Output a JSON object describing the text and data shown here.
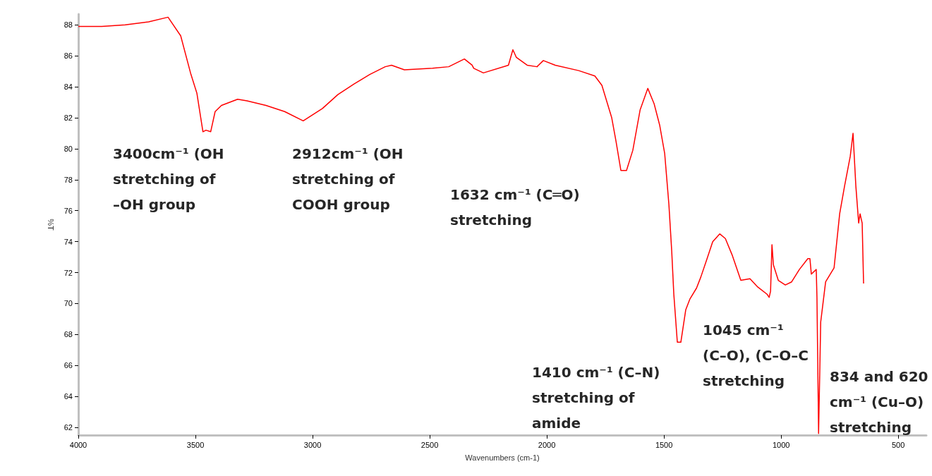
{
  "chart_data": {
    "type": "line",
    "xlabel": "Wavenumbers (cm-1)",
    "ylabel": "%T",
    "xlim": [
      4000,
      380
    ],
    "xticks": [
      4000,
      3500,
      3000,
      2500,
      2000,
      1500,
      1000,
      500
    ],
    "ylim": [
      61.5,
      88.7
    ],
    "yticks": [
      62,
      64,
      66,
      68,
      70,
      72,
      74,
      76,
      78,
      80,
      82,
      84,
      86,
      88
    ],
    "marker": "none",
    "line_style": "solid",
    "series": [
      {
        "color": "#ff0000",
        "x": [
          4000,
          3900,
          3800,
          3700,
          3617,
          3563,
          3521,
          3494,
          3468,
          3455,
          3435,
          3416,
          3389,
          3320,
          3280,
          3199,
          3119,
          3040,
          2958,
          2892,
          2822,
          2756,
          2690,
          2663,
          2608,
          2488,
          2419,
          2352,
          2319,
          2312,
          2271,
          2164,
          2145,
          2130,
          2084,
          2042,
          2015,
          1964,
          1864,
          1795,
          1765,
          1723,
          1705,
          1684,
          1660,
          1633,
          1602,
          1569,
          1542,
          1518,
          1497,
          1479,
          1467,
          1458,
          1443,
          1428,
          1407,
          1389,
          1361,
          1343,
          1316,
          1292,
          1262,
          1238,
          1208,
          1172,
          1133,
          1102,
          1060,
          1051,
          1045,
          1039,
          1033,
          1012,
          982,
          955,
          922,
          886,
          877,
          871,
          850,
          847,
          840,
          831,
          810,
          774,
          750,
          729,
          705,
          693,
          681,
          669,
          663,
          654,
          648
        ],
        "values": [
          87.9,
          87.9,
          88.0,
          88.2,
          88.5,
          87.3,
          84.9,
          83.6,
          81.1,
          81.2,
          81.1,
          82.4,
          82.8,
          83.2,
          83.1,
          82.8,
          82.4,
          81.8,
          82.6,
          83.5,
          84.2,
          84.8,
          85.3,
          85.4,
          85.1,
          85.2,
          85.3,
          85.8,
          85.4,
          85.2,
          84.9,
          85.4,
          86.4,
          85.9,
          85.4,
          85.3,
          85.7,
          85.4,
          85.05,
          84.7,
          84.1,
          82.0,
          80.5,
          78.6,
          78.6,
          79.9,
          82.5,
          83.9,
          82.9,
          81.5,
          79.7,
          76.4,
          73.4,
          70.6,
          67.5,
          67.5,
          69.6,
          70.3,
          71.0,
          71.7,
          72.9,
          74.0,
          74.5,
          74.2,
          73.1,
          71.5,
          71.6,
          71.1,
          70.6,
          70.4,
          70.8,
          73.8,
          72.5,
          71.5,
          71.2,
          71.4,
          72.2,
          72.9,
          72.9,
          71.9,
          72.2,
          70.4,
          61.6,
          68.8,
          71.4,
          72.3,
          75.8,
          77.6,
          79.5,
          81.0,
          77.6,
          75.2,
          75.8,
          75.2,
          71.3
        ]
      }
    ],
    "annotations": [
      "3400cm⁻¹ (OH\nstretching of\n–OH group",
      "2912cm⁻¹ (OH\nstretching of\nCOOH group",
      "1632 cm⁻¹ (C═O)\nstretching",
      "1410 cm⁻¹ (C–N)\nstretching of\namide",
      "1045 cm⁻¹\n(C–O), (C–O–C\nstretching",
      "834 and 620\ncm⁻¹ (Cu–O)\nstretching"
    ]
  }
}
